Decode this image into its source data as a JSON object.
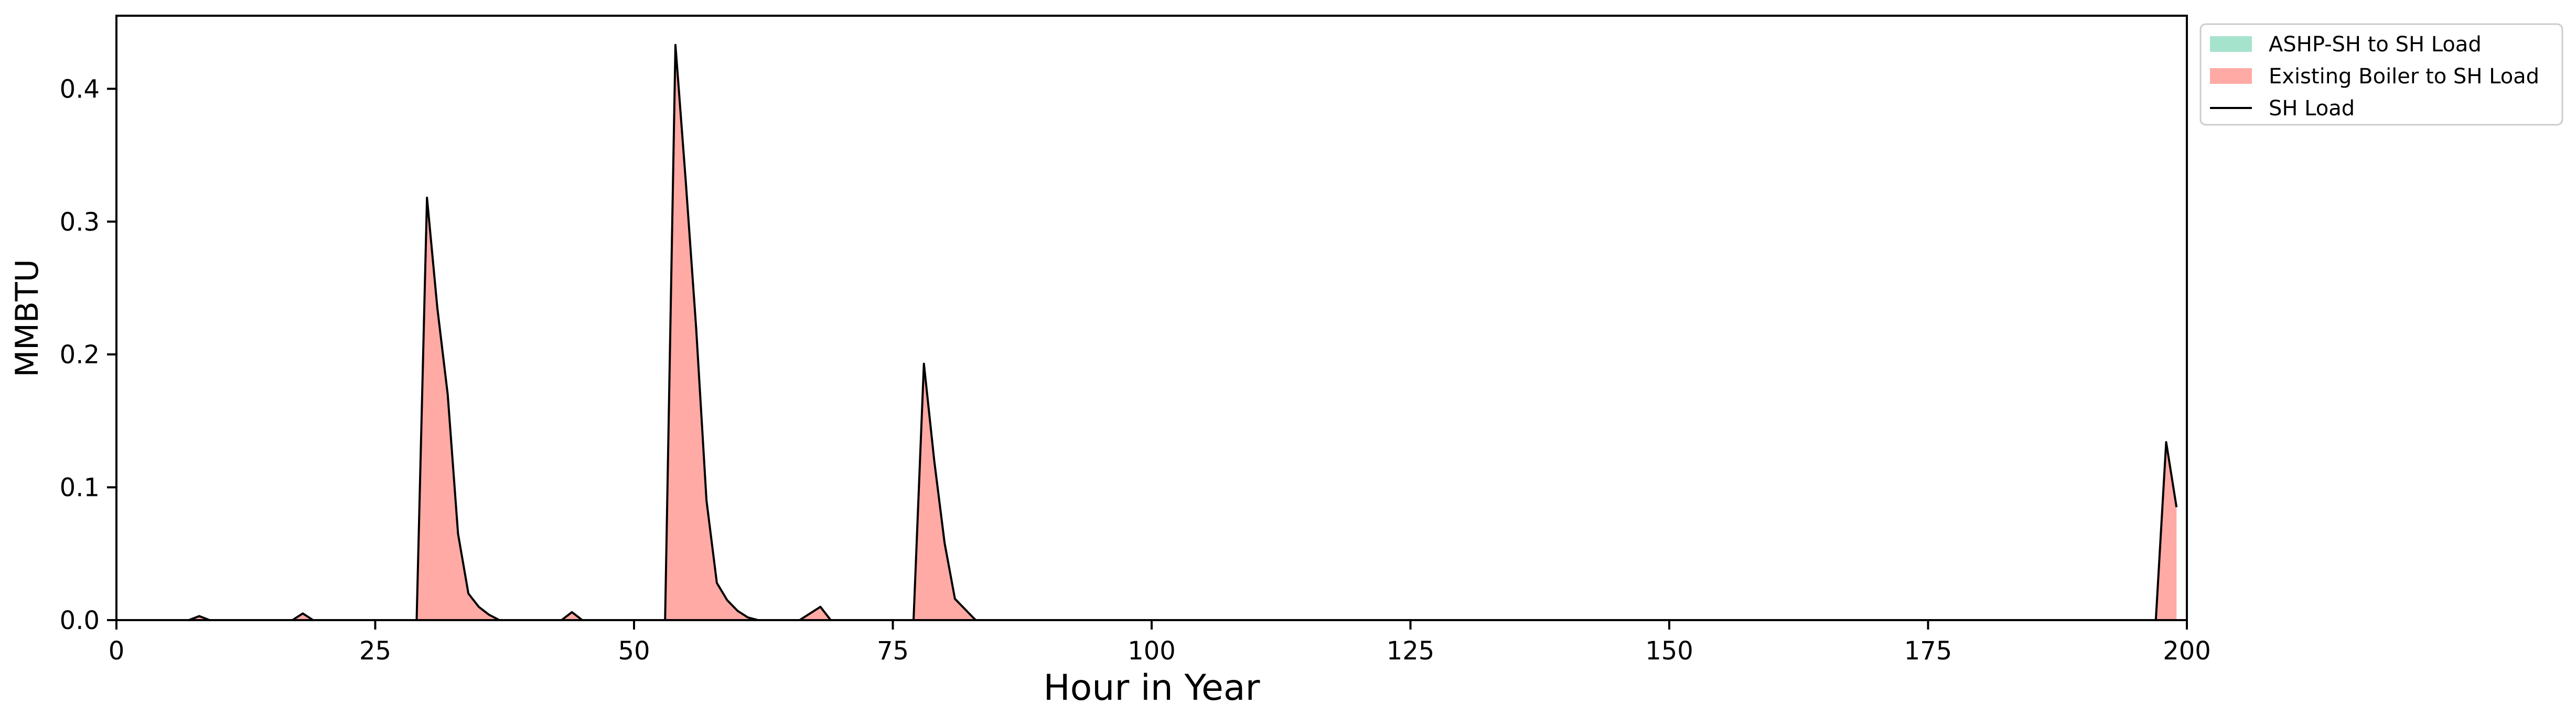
{
  "chart_data": {
    "type": "area",
    "xlabel": "Hour in Year",
    "ylabel": "MMBTU",
    "xlim": [
      0,
      200
    ],
    "ylim": [
      0,
      0.455
    ],
    "xticks": [
      0,
      25,
      50,
      75,
      100,
      125,
      150,
      175,
      200
    ],
    "yticks": [
      0.0,
      0.1,
      0.2,
      0.3,
      0.4
    ],
    "xtick_labels": [
      "0",
      "25",
      "50",
      "75",
      "100",
      "125",
      "150",
      "175",
      "200"
    ],
    "ytick_labels": [
      "0.0",
      "0.1",
      "0.2",
      "0.3",
      "0.4"
    ],
    "grid": false,
    "legend_position": "outside-top-right",
    "legend": [
      {
        "label": "ASHP-SH to SH Load",
        "kind": "patch",
        "color": "#a6e3cc"
      },
      {
        "label": "Existing Boiler to SH Load",
        "kind": "patch",
        "color": "#ffaaa5"
      },
      {
        "label": "SH Load",
        "kind": "line",
        "color": "#000000"
      }
    ],
    "series": [
      {
        "name": "ASHP-SH to SH Load",
        "kind": "stacked-area",
        "color": "#a6e3cc",
        "x": [
          0,
          199
        ],
        "y": [
          0,
          0
        ]
      },
      {
        "name": "Existing Boiler to SH Load",
        "kind": "stacked-area",
        "color": "#ffaaa5",
        "x": [
          0,
          7,
          8,
          9,
          17,
          18,
          19,
          29,
          30,
          31,
          32,
          33,
          34,
          35,
          36,
          37,
          43,
          44,
          45,
          53,
          54,
          55,
          56,
          57,
          58,
          59,
          60,
          61,
          62,
          66,
          67,
          68,
          69,
          77,
          78,
          79,
          80,
          81,
          82,
          83,
          197,
          198,
          199
        ],
        "y": [
          0,
          0,
          0.003,
          0,
          0,
          0.005,
          0,
          0,
          0.318,
          0.235,
          0.17,
          0.065,
          0.02,
          0.01,
          0.004,
          0,
          0,
          0.006,
          0,
          0,
          0.433,
          0.33,
          0.22,
          0.09,
          0.028,
          0.015,
          0.007,
          0.002,
          0,
          0,
          0.005,
          0.01,
          0,
          0,
          0.193,
          0.12,
          0.058,
          0.016,
          0.008,
          0,
          0,
          0.134,
          0.085
        ]
      },
      {
        "name": "SH Load",
        "kind": "line",
        "color": "#000000",
        "x": [
          0,
          7,
          8,
          9,
          17,
          18,
          19,
          29,
          30,
          31,
          32,
          33,
          34,
          35,
          36,
          37,
          43,
          44,
          45,
          53,
          54,
          55,
          56,
          57,
          58,
          59,
          60,
          61,
          62,
          66,
          67,
          68,
          69,
          77,
          78,
          79,
          80,
          81,
          82,
          83,
          197,
          198,
          199
        ],
        "y": [
          0,
          0,
          0.003,
          0,
          0,
          0.005,
          0,
          0,
          0.318,
          0.235,
          0.17,
          0.065,
          0.02,
          0.01,
          0.004,
          0,
          0,
          0.006,
          0,
          0,
          0.433,
          0.33,
          0.22,
          0.09,
          0.028,
          0.015,
          0.007,
          0.002,
          0,
          0,
          0.005,
          0.01,
          0,
          0,
          0.193,
          0.12,
          0.058,
          0.016,
          0.008,
          0,
          0,
          0.134,
          0.085
        ]
      }
    ]
  }
}
